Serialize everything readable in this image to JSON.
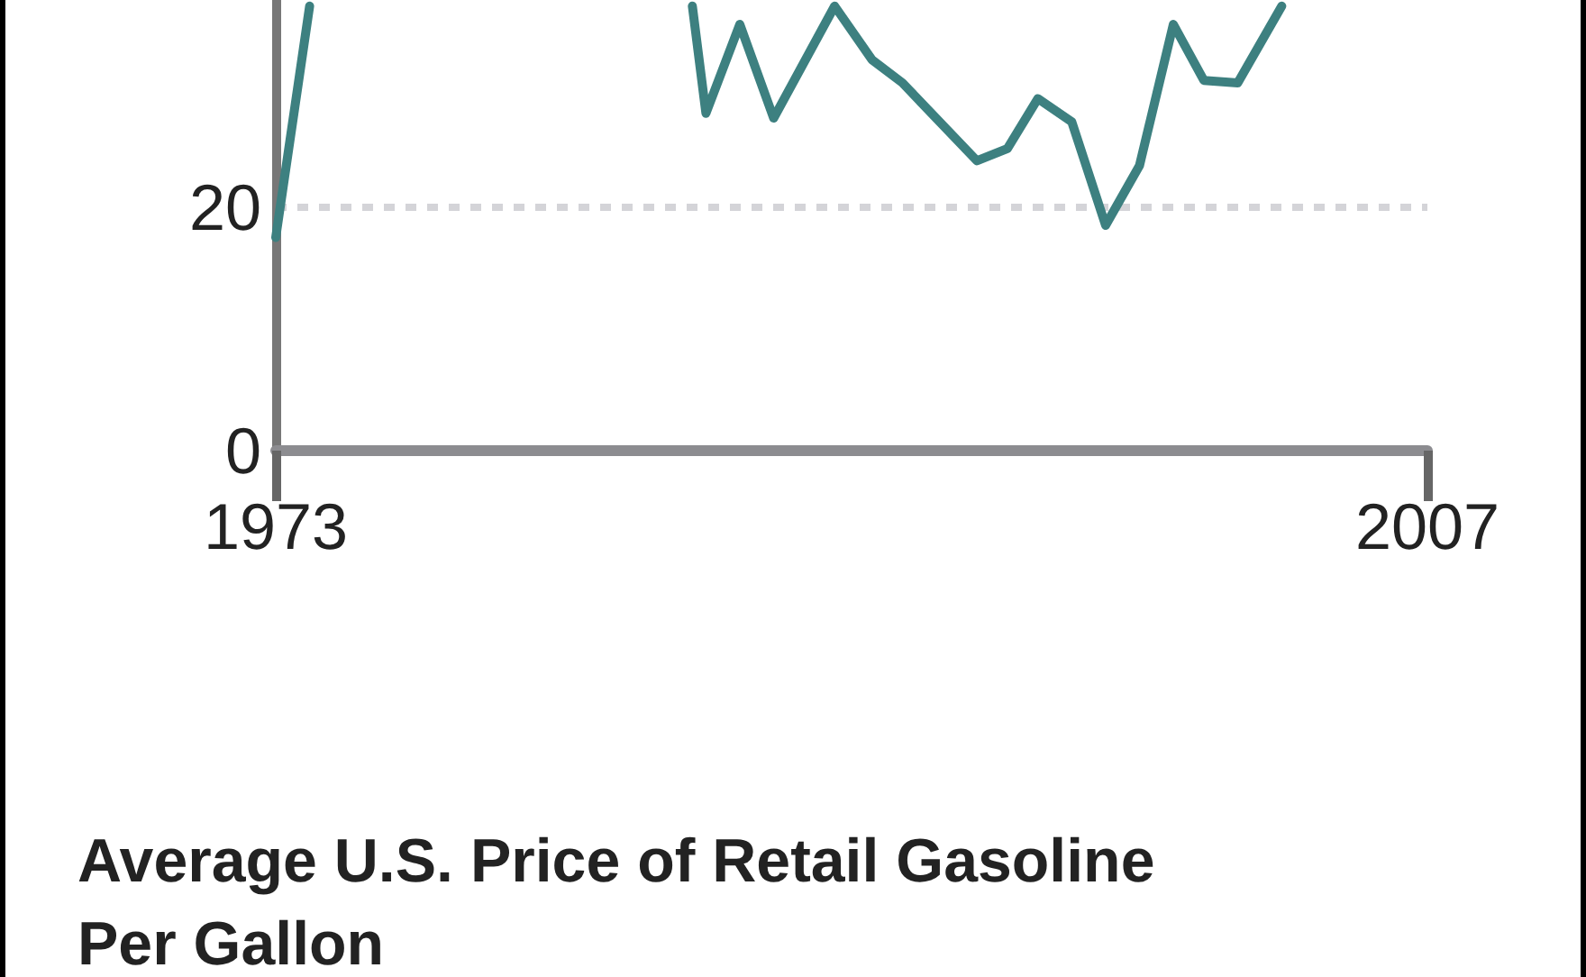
{
  "chart_data": {
    "type": "line",
    "title": "Average U.S. Price of Retail Gasoline Per Gallon",
    "x": [
      1973,
      1974,
      1980,
      1985.3,
      1985.7,
      1986.7,
      1987.7,
      1989.5,
      1990.6,
      1991.5,
      1993.7,
      1994.6,
      1995.5,
      1996.5,
      1997.5,
      1998.5,
      1999.5,
      2000.4,
      2001.4,
      2002.7
    ],
    "series": [
      {
        "color": "#3d8080",
        "values": [
          17.5,
          36.5,
          null,
          36.5,
          27.7,
          35,
          27.3,
          36.5,
          32.1,
          30.2,
          23.8,
          24.8,
          28.9,
          27,
          18.5,
          23.4,
          35,
          30.4,
          30.2,
          36.5
        ]
      }
    ],
    "xlim": [
      1973,
      2007
    ],
    "xticks": [
      1973,
      2007
    ],
    "ylim": [
      0,
      37
    ],
    "yticks": [
      0,
      20
    ],
    "grid": "y",
    "marker": "none",
    "line_style": "solid"
  }
}
